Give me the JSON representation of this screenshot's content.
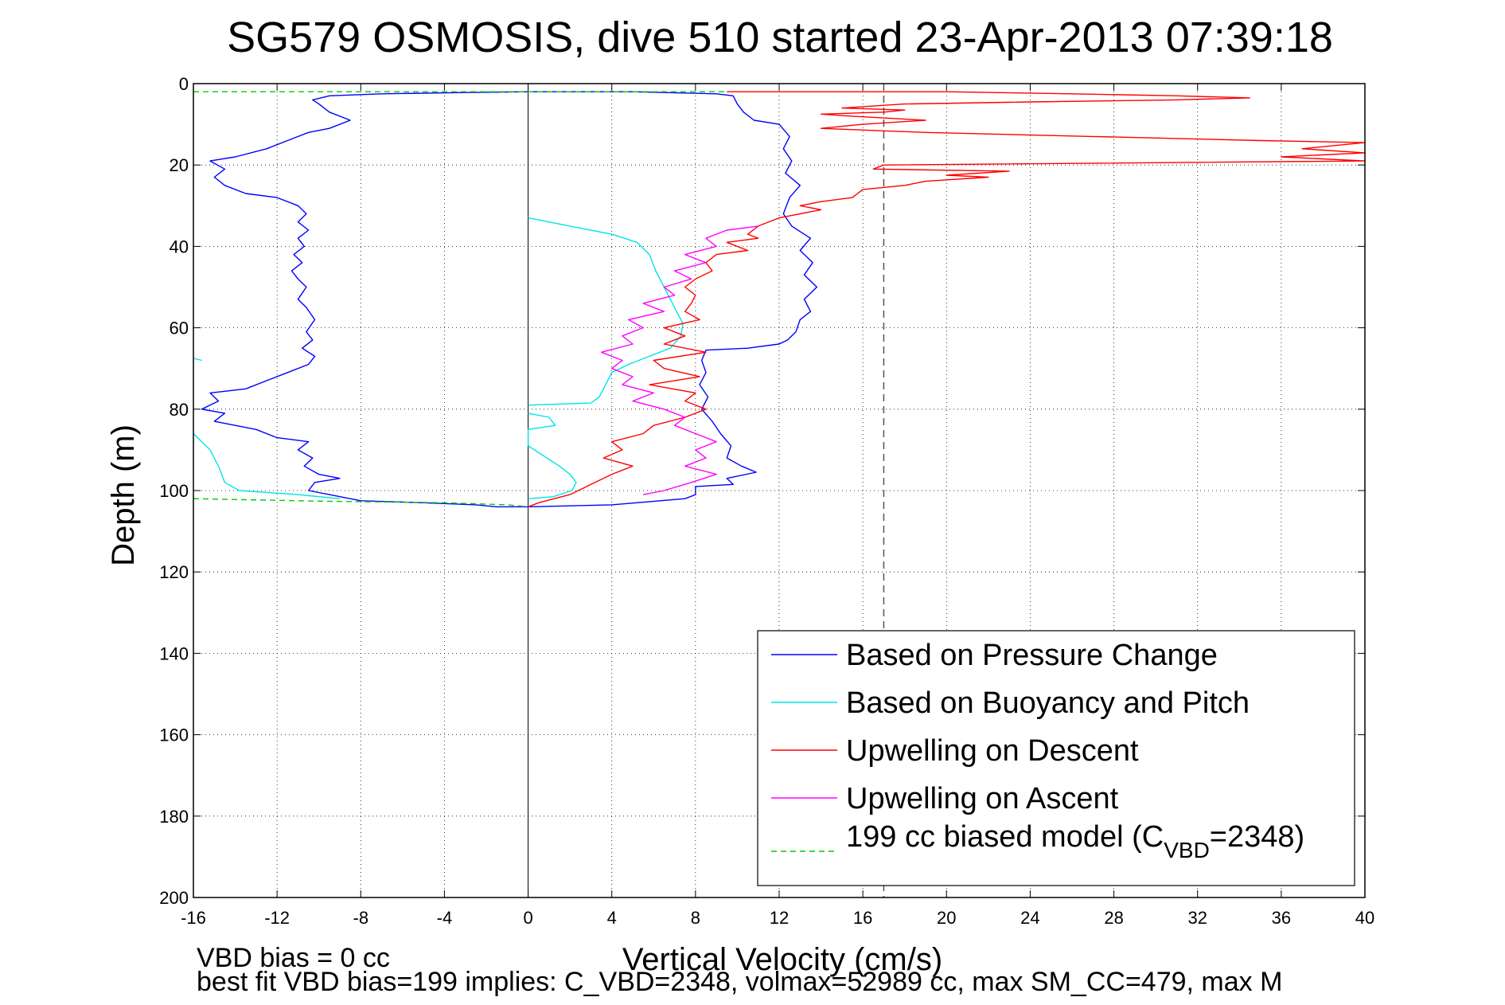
{
  "chart_data": {
    "type": "line",
    "title": "SG579 OSMOSIS, dive 510 started 23-Apr-2013 07:39:18",
    "xlabel": "Vertical Velocity (cm/s)",
    "ylabel": "Depth (m)",
    "xlim": [
      -16,
      40
    ],
    "ylim": [
      0,
      200
    ],
    "y_reversed": true,
    "grid": true,
    "x_ticks": [
      "-16",
      "-12",
      "-8",
      "-4",
      "0",
      "4",
      "8",
      "12",
      "16",
      "20",
      "24",
      "28",
      "32",
      "36",
      "40"
    ],
    "y_ticks": [
      "0",
      "20",
      "40",
      "60",
      "80",
      "100",
      "120",
      "140",
      "160",
      "180",
      "200"
    ],
    "reference_lines": {
      "zero_x": 0,
      "dashed_x": 17
    },
    "legend_position": "bottom-right",
    "legend": {
      "pressure": "Based on Pressure Change",
      "buoyancy": "Based on Buoyancy and Pitch",
      "descent": "Upwelling on Descent",
      "ascent": "Upwelling on Ascent",
      "model_prefix": "199 cc biased model (C",
      "model_sub": "VBD",
      "model_suffix": "=2348)"
    },
    "series": [
      {
        "key": "pressure_descent",
        "color": "#0000ff",
        "points": [
          [
            0,
            2
          ],
          [
            5,
            2
          ],
          [
            9,
            2.5
          ],
          [
            9.8,
            3
          ],
          [
            10,
            5
          ],
          [
            10.3,
            7
          ],
          [
            10.8,
            9
          ],
          [
            12,
            10
          ],
          [
            12.5,
            13
          ],
          [
            12.2,
            16
          ],
          [
            12.6,
            19
          ],
          [
            12.3,
            22
          ],
          [
            13,
            25
          ],
          [
            12.5,
            28
          ],
          [
            12.2,
            32
          ],
          [
            12.6,
            35
          ],
          [
            13.5,
            38
          ],
          [
            13,
            41
          ],
          [
            13.6,
            44
          ],
          [
            13.2,
            47
          ],
          [
            13.8,
            50
          ],
          [
            13.2,
            53
          ],
          [
            13.5,
            56
          ],
          [
            13,
            58
          ],
          [
            12.8,
            61
          ],
          [
            12.4,
            63
          ],
          [
            12,
            64
          ],
          [
            10.5,
            65
          ],
          [
            8.5,
            65.5
          ],
          [
            8.3,
            68
          ],
          [
            8.5,
            71
          ],
          [
            8.2,
            74
          ],
          [
            8.6,
            77
          ],
          [
            8.3,
            80
          ],
          [
            8.8,
            83
          ],
          [
            9.2,
            86
          ],
          [
            9.7,
            89
          ],
          [
            9.5,
            92
          ],
          [
            10.2,
            94
          ],
          [
            10.9,
            95.5
          ],
          [
            9.5,
            97
          ],
          [
            9.8,
            98.5
          ],
          [
            8,
            99
          ],
          [
            8,
            101
          ],
          [
            7.5,
            102
          ],
          [
            4,
            103.5
          ],
          [
            0,
            104
          ]
        ]
      },
      {
        "key": "pressure_ascent",
        "color": "#0000ff",
        "points": [
          [
            0,
            104
          ],
          [
            -1.5,
            104
          ],
          [
            -2.5,
            103.5
          ],
          [
            -5,
            103
          ],
          [
            -8,
            102.5
          ],
          [
            -9.5,
            101
          ],
          [
            -10.5,
            100
          ],
          [
            -10.2,
            98
          ],
          [
            -9,
            97
          ],
          [
            -10,
            96
          ],
          [
            -10.7,
            94
          ],
          [
            -10.3,
            92
          ],
          [
            -11,
            90
          ],
          [
            -10.5,
            88
          ],
          [
            -12,
            87
          ],
          [
            -13,
            85
          ],
          [
            -14,
            84
          ],
          [
            -15,
            83
          ],
          [
            -14.5,
            81
          ],
          [
            -15.6,
            80
          ],
          [
            -14.8,
            78
          ],
          [
            -15.2,
            76
          ],
          [
            -13.5,
            75
          ],
          [
            -12.5,
            73
          ],
          [
            -11.5,
            71
          ],
          [
            -10.5,
            69
          ],
          [
            -10.2,
            67
          ],
          [
            -10.8,
            65
          ],
          [
            -10.3,
            63
          ],
          [
            -10.6,
            61
          ],
          [
            -10.2,
            58
          ],
          [
            -10.6,
            55
          ],
          [
            -11,
            53
          ],
          [
            -10.6,
            50
          ],
          [
            -11,
            48
          ],
          [
            -11.3,
            46
          ],
          [
            -10.8,
            44
          ],
          [
            -11.2,
            42
          ],
          [
            -10.7,
            40
          ],
          [
            -11,
            38
          ],
          [
            -10.5,
            36
          ],
          [
            -11,
            34
          ],
          [
            -10.6,
            32
          ],
          [
            -11,
            30
          ],
          [
            -12,
            28
          ],
          [
            -13.5,
            27
          ],
          [
            -14.5,
            25
          ],
          [
            -15,
            23
          ],
          [
            -14.5,
            21
          ],
          [
            -15.2,
            19
          ],
          [
            -14,
            18
          ],
          [
            -12.5,
            16
          ],
          [
            -11.5,
            14
          ],
          [
            -10.5,
            12
          ],
          [
            -9.5,
            11
          ],
          [
            -8.5,
            9
          ],
          [
            -9.5,
            7
          ],
          [
            -10,
            5
          ],
          [
            -10.3,
            4
          ],
          [
            -9.5,
            3
          ],
          [
            -7,
            2.5
          ],
          [
            -3,
            2.2
          ],
          [
            0,
            2
          ]
        ]
      },
      {
        "key": "buoyancy_main",
        "color": "#00e5e5",
        "points": [
          [
            0,
            33
          ],
          [
            2,
            35
          ],
          [
            4,
            37
          ],
          [
            5.2,
            39
          ],
          [
            5.8,
            42
          ],
          [
            6.1,
            46
          ],
          [
            6.5,
            50
          ],
          [
            6.8,
            53
          ],
          [
            7.1,
            56
          ],
          [
            7.4,
            59
          ],
          [
            7.3,
            62
          ],
          [
            6.8,
            65
          ],
          [
            5.8,
            67
          ],
          [
            4.8,
            69
          ],
          [
            4,
            71
          ],
          [
            3.8,
            73
          ],
          [
            3.6,
            75
          ],
          [
            3.4,
            77
          ],
          [
            3,
            78.5
          ],
          [
            0,
            79
          ]
        ]
      },
      {
        "key": "buoyancy_lower",
        "color": "#00e5e5",
        "points": [
          [
            0,
            81
          ],
          [
            1,
            82
          ],
          [
            1.3,
            84
          ],
          [
            0,
            85
          ],
          [
            0,
            89
          ],
          [
            0.6,
            91
          ],
          [
            1.5,
            94
          ],
          [
            2,
            96
          ],
          [
            2.3,
            98
          ],
          [
            2.1,
            100
          ],
          [
            1.2,
            101.5
          ],
          [
            0,
            102
          ]
        ]
      },
      {
        "key": "buoyancy_left",
        "color": "#00e5e5",
        "points": [
          [
            -16,
            86
          ],
          [
            -15.2,
            90
          ],
          [
            -14.8,
            94
          ],
          [
            -14.5,
            98
          ],
          [
            -13.8,
            100
          ],
          [
            -11,
            101
          ],
          [
            -9,
            102
          ]
        ]
      },
      {
        "key": "buoyancy_tick",
        "color": "#00e5e5",
        "points": [
          [
            -16,
            67.5
          ],
          [
            -15.6,
            68
          ]
        ]
      },
      {
        "key": "upwelling_descent",
        "color": "#ff0000",
        "points": [
          [
            9.5,
            2
          ],
          [
            20,
            2
          ],
          [
            26,
            2.5
          ],
          [
            31,
            3
          ],
          [
            34.5,
            3.5
          ],
          [
            31,
            4
          ],
          [
            24,
            4.5
          ],
          [
            18,
            5
          ],
          [
            15,
            6
          ],
          [
            18,
            6.5
          ],
          [
            17,
            7
          ],
          [
            14,
            7.5
          ],
          [
            15.5,
            8
          ],
          [
            19,
            9
          ],
          [
            16,
            10
          ],
          [
            14,
            11
          ],
          [
            16.5,
            11.5
          ],
          [
            19,
            12
          ],
          [
            27,
            13
          ],
          [
            35,
            14
          ],
          [
            40,
            14.5
          ],
          [
            37,
            16
          ],
          [
            40,
            17
          ],
          [
            36,
            18
          ],
          [
            40,
            19
          ],
          [
            17,
            20
          ],
          [
            16.5,
            21
          ],
          [
            23,
            21.5
          ],
          [
            20,
            22.5
          ],
          [
            22,
            23
          ],
          [
            19,
            24
          ],
          [
            18,
            25
          ],
          [
            16,
            26
          ],
          [
            15.5,
            28
          ],
          [
            14,
            29
          ],
          [
            13,
            30
          ],
          [
            14,
            31
          ],
          [
            12,
            33
          ],
          [
            11,
            35
          ],
          [
            10.5,
            37
          ],
          [
            11,
            38
          ],
          [
            9.5,
            39
          ],
          [
            10.5,
            41
          ],
          [
            9,
            42
          ],
          [
            8.5,
            44
          ],
          [
            8.8,
            46
          ],
          [
            8,
            48
          ],
          [
            7.5,
            50
          ],
          [
            8,
            52
          ],
          [
            7.8,
            54
          ],
          [
            7.5,
            56
          ],
          [
            8.2,
            58
          ],
          [
            6.5,
            60
          ],
          [
            7.5,
            62
          ],
          [
            6.5,
            64
          ],
          [
            8.5,
            66
          ],
          [
            6,
            68
          ],
          [
            6.5,
            70
          ],
          [
            8.2,
            72
          ],
          [
            5.8,
            74
          ],
          [
            8,
            76
          ],
          [
            7.5,
            78
          ],
          [
            8.5,
            80
          ],
          [
            7.5,
            82
          ],
          [
            6,
            84
          ],
          [
            5.5,
            86
          ],
          [
            4,
            88
          ],
          [
            4.5,
            90
          ],
          [
            3.6,
            92
          ],
          [
            5,
            94
          ],
          [
            4,
            96
          ],
          [
            3.2,
            98
          ],
          [
            2,
            101
          ],
          [
            0.5,
            103
          ],
          [
            0,
            104
          ]
        ]
      },
      {
        "key": "upwelling_ascent",
        "color": "#ff00ff",
        "points": [
          [
            11,
            35
          ],
          [
            9.5,
            36
          ],
          [
            8.5,
            38
          ],
          [
            9,
            40
          ],
          [
            7.5,
            42
          ],
          [
            8.5,
            44
          ],
          [
            7,
            46
          ],
          [
            7.8,
            48
          ],
          [
            6.5,
            50
          ],
          [
            7,
            52
          ],
          [
            5.5,
            54
          ],
          [
            6.5,
            56
          ],
          [
            4.8,
            58
          ],
          [
            5.5,
            60
          ],
          [
            4.5,
            62
          ],
          [
            5,
            64
          ],
          [
            3.5,
            66
          ],
          [
            4.5,
            68
          ],
          [
            4,
            70
          ],
          [
            5,
            72
          ],
          [
            4.5,
            74
          ],
          [
            6,
            76
          ],
          [
            5,
            78
          ],
          [
            6.5,
            80
          ],
          [
            7.5,
            82
          ],
          [
            7,
            84
          ],
          [
            8,
            86
          ],
          [
            9,
            88
          ],
          [
            8,
            90
          ],
          [
            8.5,
            92
          ],
          [
            7.5,
            94
          ],
          [
            9,
            96
          ],
          [
            7.8,
            98
          ],
          [
            6.5,
            100
          ],
          [
            5.5,
            101
          ]
        ]
      },
      {
        "key": "model",
        "color": "#00cc00",
        "dashed": true,
        "points": [
          [
            -16,
            2
          ],
          [
            0,
            2
          ],
          [
            9.5,
            2
          ]
        ]
      },
      {
        "key": "model_bottom",
        "color": "#00cc00",
        "dashed": true,
        "points": [
          [
            -16,
            102
          ],
          [
            -10,
            102.6
          ],
          [
            -4,
            103
          ],
          [
            -1,
            103.5
          ],
          [
            0,
            104
          ]
        ]
      }
    ]
  },
  "footer": {
    "line1": "VBD bias = 0 cc",
    "line2": "best fit VBD bias=199 implies: C_VBD=2348, volmax=52989 cc, max SM_CC=479, max M"
  }
}
